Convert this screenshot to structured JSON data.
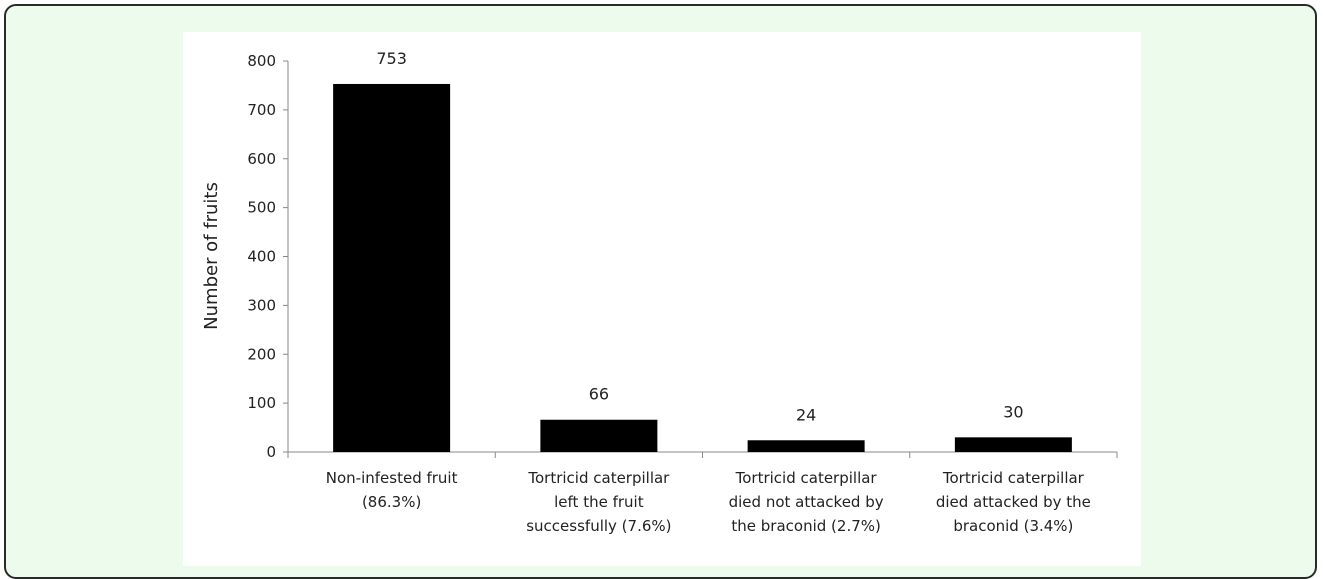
{
  "chart_data": {
    "type": "bar",
    "categories": [
      [
        "Non-infested fruit",
        "(86.3%)"
      ],
      [
        "Tortricid caterpillar",
        "left the fruit",
        "successfully (7.6%)"
      ],
      [
        "Tortricid caterpillar",
        "died not attacked by",
        "the braconid (2.7%)"
      ],
      [
        "Tortricid caterpillar",
        "died attacked by the",
        "braconid (3.4%)"
      ]
    ],
    "values": [
      753,
      66,
      24,
      30
    ],
    "data_labels": [
      "753",
      "66",
      "24",
      "30"
    ],
    "title": "",
    "xlabel": "",
    "ylabel": "Number of fruits",
    "ylim": [
      0,
      800
    ],
    "yticks": [
      0,
      100,
      200,
      300,
      400,
      500,
      600,
      700,
      800
    ],
    "grid": false,
    "legend": "none",
    "bar_color": "#000000"
  }
}
